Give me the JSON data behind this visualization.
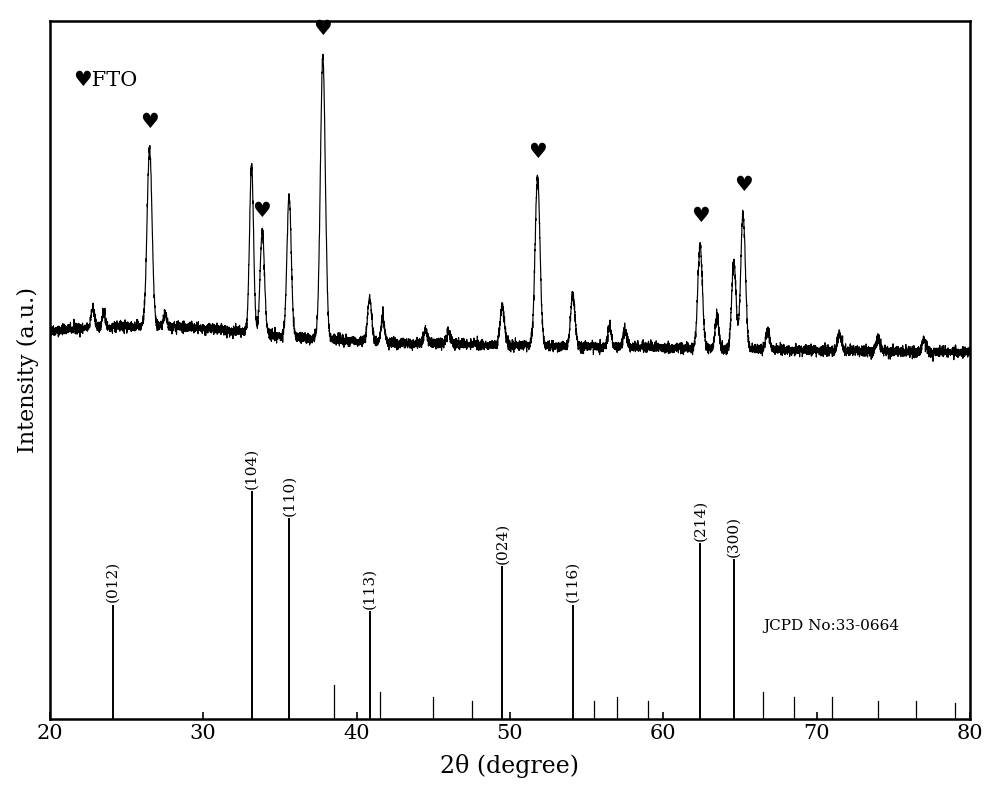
{
  "xlabel": "2θ (degree)",
  "ylabel": "Intensity (a.u.)",
  "xlim": [
    20,
    80
  ],
  "background_color": "#ffffff",
  "fto_label": "♥FTO",
  "jcpd_label": "JCPD No:33-0664",
  "fto_heart_xrd_positions": [
    26.5,
    33.8,
    37.8,
    51.8,
    62.4,
    65.2
  ],
  "ref_lines": {
    "positions": [
      24.1,
      33.15,
      35.6,
      40.85,
      49.5,
      54.1,
      62.4,
      64.6
    ],
    "labels": [
      "(012)",
      "(104)",
      "(110)",
      "(113)",
      "(024)",
      "(116)",
      "(214)",
      "(300)"
    ],
    "rel_heights": [
      0.5,
      1.0,
      0.88,
      0.47,
      0.67,
      0.5,
      0.77,
      0.7
    ],
    "minor_positions": [
      38.5,
      41.5,
      45.0,
      47.5,
      55.5,
      57.0,
      59.0,
      66.5,
      68.5,
      71.0,
      74.0,
      76.5,
      79.0
    ],
    "minor_heights": [
      0.15,
      0.12,
      0.1,
      0.08,
      0.08,
      0.1,
      0.08,
      0.12,
      0.1,
      0.1,
      0.08,
      0.08,
      0.07
    ]
  },
  "noise_seed": 42,
  "line_color": "#000000",
  "tick_fontsize": 15,
  "label_fontsize": 17,
  "ref_label_fontsize": 11,
  "jcpd_fontsize": 11
}
